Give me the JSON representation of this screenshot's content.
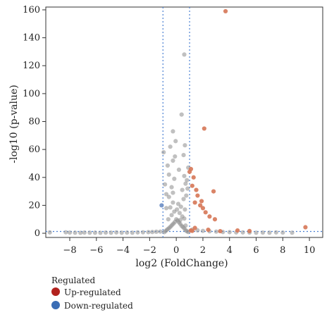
{
  "chart_data": {
    "type": "scatter",
    "title": "",
    "xlabel": "log2 (FoldChange)",
    "ylabel": "-log10 (p-value)",
    "xlim": [
      -9.8,
      11
    ],
    "ylim": [
      -3,
      162
    ],
    "xticks": [
      -8,
      -6,
      -4,
      -2,
      0,
      2,
      4,
      6,
      8,
      10
    ],
    "yticks": [
      0,
      20,
      40,
      60,
      80,
      100,
      120,
      140,
      160
    ],
    "threshold_lines": {
      "vertical": [
        -1,
        1
      ],
      "horizontal": [
        1.3
      ]
    },
    "grid": false,
    "legend": {
      "title": "Regulated",
      "placement": "bottom-left",
      "items": [
        {
          "label": "Up-regulated",
          "color": "#b2221e"
        },
        {
          "label": "Down-regulated",
          "color": "#3a6db5"
        }
      ]
    },
    "colors": {
      "not_significant": "#8c8c8c",
      "up_points": "#d77a5a",
      "down_points": "#6f8fc6",
      "threshold": "#4a7fd3"
    },
    "series": [
      {
        "group": "not_significant",
        "points": [
          [
            -9.5,
            0.6
          ],
          [
            -8.3,
            0.7
          ],
          [
            -8.0,
            0.5
          ],
          [
            -7.6,
            0.4
          ],
          [
            -7.2,
            0.3
          ],
          [
            -6.9,
            0.5
          ],
          [
            -6.5,
            0.4
          ],
          [
            -6.1,
            0.4
          ],
          [
            -5.7,
            0.3
          ],
          [
            -5.3,
            0.5
          ],
          [
            -4.9,
            0.4
          ],
          [
            -4.5,
            0.6
          ],
          [
            -4.1,
            0.4
          ],
          [
            -3.7,
            0.5
          ],
          [
            -3.3,
            0.4
          ],
          [
            -2.9,
            0.6
          ],
          [
            -2.5,
            0.7
          ],
          [
            -2.1,
            0.8
          ],
          [
            -1.8,
            0.9
          ],
          [
            -1.5,
            1.1
          ],
          [
            -1.2,
            1.2
          ],
          [
            -0.9,
            0.8
          ],
          [
            -0.8,
            1.6
          ],
          [
            -0.7,
            2.5
          ],
          [
            -0.6,
            3.2
          ],
          [
            -0.5,
            4.1
          ],
          [
            -0.4,
            5.0
          ],
          [
            -0.3,
            6.1
          ],
          [
            -0.2,
            7.0
          ],
          [
            -0.1,
            8.2
          ],
          [
            0.0,
            10.0
          ],
          [
            0.1,
            9.1
          ],
          [
            0.2,
            7.8
          ],
          [
            0.3,
            6.7
          ],
          [
            0.4,
            5.3
          ],
          [
            0.5,
            4.5
          ],
          [
            0.6,
            3.4
          ],
          [
            0.7,
            2.2
          ],
          [
            0.8,
            1.4
          ],
          [
            0.9,
            0.9
          ],
          [
            -0.35,
            13.0
          ],
          [
            -0.15,
            15.5
          ],
          [
            0.05,
            17.0
          ],
          [
            0.25,
            14.5
          ],
          [
            0.45,
            12.0
          ],
          [
            0.6,
            10.5
          ],
          [
            -0.6,
            10.0
          ],
          [
            -0.45,
            18.5
          ],
          [
            0.15,
            21.0
          ],
          [
            0.35,
            19.0
          ],
          [
            -0.25,
            22.0
          ],
          [
            0.55,
            24.5
          ],
          [
            -0.55,
            26.0
          ],
          [
            0.75,
            27.0
          ],
          [
            -0.75,
            28.0
          ],
          [
            0.45,
            31.0
          ],
          [
            -0.35,
            33.0
          ],
          [
            0.7,
            35.5
          ],
          [
            0.8,
            38.0
          ],
          [
            -0.15,
            39.0
          ],
          [
            0.6,
            41.0
          ],
          [
            -0.55,
            42.0
          ],
          [
            0.2,
            45.5
          ],
          [
            0.9,
            47.0
          ],
          [
            -0.65,
            48.5
          ],
          [
            -0.25,
            52.0
          ],
          [
            -0.1,
            55.0
          ],
          [
            0.55,
            56.0
          ],
          [
            -0.95,
            58.0
          ],
          [
            -0.45,
            62.0
          ],
          [
            0.65,
            63.0
          ],
          [
            -0.05,
            66.0
          ],
          [
            -0.25,
            73.0
          ],
          [
            0.4,
            85.0
          ],
          [
            0.6,
            128.0
          ],
          [
            -0.85,
            35.0
          ],
          [
            0.85,
            32.0
          ],
          [
            -0.75,
            18.0
          ],
          [
            0.65,
            17.0
          ],
          [
            -0.25,
            29.0
          ],
          [
            0.3,
            9.5
          ],
          [
            0.7,
            5.5
          ],
          [
            1.2,
            2.6
          ],
          [
            1.6,
            2.1
          ],
          [
            2.0,
            1.7
          ],
          [
            2.5,
            1.4
          ],
          [
            3.0,
            1.2
          ],
          [
            3.5,
            0.9
          ],
          [
            4.0,
            0.8
          ],
          [
            4.5,
            0.6
          ],
          [
            5.0,
            0.6
          ],
          [
            5.5,
            0.5
          ],
          [
            6.0,
            0.4
          ],
          [
            6.5,
            0.5
          ],
          [
            7.0,
            0.4
          ],
          [
            7.5,
            0.6
          ],
          [
            8.0,
            0.5
          ],
          [
            8.7,
            0.4
          ]
        ]
      },
      {
        "group": "up_points",
        "points": [
          [
            1.0,
            44.0
          ],
          [
            1.1,
            46.0
          ],
          [
            1.3,
            40.0
          ],
          [
            1.2,
            34.0
          ],
          [
            1.5,
            31.0
          ],
          [
            1.6,
            27.0
          ],
          [
            1.4,
            22.0
          ],
          [
            1.8,
            20.0
          ],
          [
            2.0,
            18.0
          ],
          [
            2.2,
            15.0
          ],
          [
            2.5,
            12.0
          ],
          [
            2.9,
            10.0
          ],
          [
            1.9,
            23.0
          ],
          [
            2.1,
            75.0
          ],
          [
            2.8,
            30.0
          ],
          [
            3.7,
            159.0
          ],
          [
            9.7,
            4.3
          ],
          [
            1.1,
            2.0
          ],
          [
            1.2,
            1.7
          ],
          [
            1.4,
            3.8
          ],
          [
            2.4,
            2.5
          ],
          [
            3.3,
            1.5
          ],
          [
            4.6,
            2.0
          ],
          [
            5.5,
            1.6
          ]
        ]
      },
      {
        "group": "down_points",
        "points": [
          [
            -1.1,
            20.0
          ]
        ]
      }
    ]
  }
}
